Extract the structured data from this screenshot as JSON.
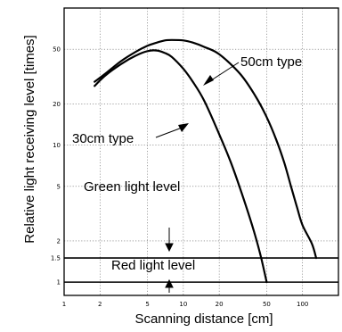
{
  "chart_data": {
    "type": "line",
    "xlabel": "Scanning distance [cm]",
    "ylabel": "Relative light receiving level [times]",
    "x_scale": "log",
    "y_scale": "log",
    "xlim": [
      1,
      200
    ],
    "ylim": [
      0.8,
      100
    ],
    "x_ticks": [
      {
        "value": 1,
        "label": "1"
      },
      {
        "value": 2,
        "label": "2"
      },
      {
        "value": 5,
        "label": "5"
      },
      {
        "value": 10,
        "label": "10"
      },
      {
        "value": 20,
        "label": "20"
      },
      {
        "value": 50,
        "label": "50"
      },
      {
        "value": 100,
        "label": "100"
      }
    ],
    "y_ticks": [
      {
        "value": 1,
        "label": "1"
      },
      {
        "value": 1.5,
        "label": "1.5"
      },
      {
        "value": 2,
        "label": "2"
      },
      {
        "value": 5,
        "label": "5"
      },
      {
        "value": 10,
        "label": "10"
      },
      {
        "value": 20,
        "label": "20"
      },
      {
        "value": 50,
        "label": "50"
      }
    ],
    "grid": true,
    "series": [
      {
        "name": "30cm type",
        "points": [
          [
            1.8,
            27
          ],
          [
            2.2,
            32
          ],
          [
            3,
            39
          ],
          [
            4,
            45
          ],
          [
            5,
            48.5
          ],
          [
            6,
            49
          ],
          [
            7,
            47
          ],
          [
            8,
            44
          ],
          [
            10,
            36
          ],
          [
            12,
            29
          ],
          [
            15,
            21
          ],
          [
            20,
            12
          ],
          [
            25,
            7.5
          ],
          [
            30,
            4.8
          ],
          [
            35,
            3.2
          ],
          [
            40,
            2.2
          ],
          [
            45,
            1.5
          ],
          [
            50,
            1.0
          ]
        ]
      },
      {
        "name": "50cm type",
        "points": [
          [
            1.8,
            29
          ],
          [
            2.2,
            33
          ],
          [
            3,
            41
          ],
          [
            4,
            48
          ],
          [
            5,
            53
          ],
          [
            6,
            56
          ],
          [
            7,
            58
          ],
          [
            8,
            58.5
          ],
          [
            10,
            58
          ],
          [
            12,
            56
          ],
          [
            15,
            52
          ],
          [
            20,
            46
          ],
          [
            30,
            33
          ],
          [
            40,
            23
          ],
          [
            50,
            16
          ],
          [
            60,
            11
          ],
          [
            70,
            7.5
          ],
          [
            80,
            5
          ],
          [
            90,
            3.5
          ],
          [
            100,
            2.6
          ],
          [
            120,
            1.9
          ],
          [
            130,
            1.5
          ]
        ]
      }
    ],
    "reference_lines": [
      {
        "y": 1
      },
      {
        "y": 1.5
      }
    ],
    "annotations": {
      "green": "Green light level",
      "red": "Red light level"
    }
  }
}
